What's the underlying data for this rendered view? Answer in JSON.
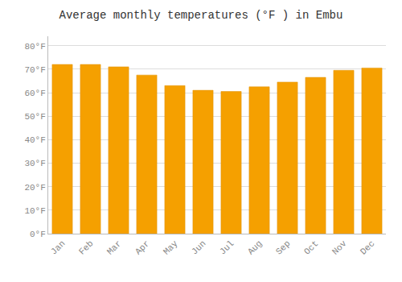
{
  "chart_data": {
    "type": "bar",
    "title": "Average monthly temperatures (°F ) in Embu",
    "categories": [
      "Jan",
      "Feb",
      "Mar",
      "Apr",
      "May",
      "Jun",
      "Jul",
      "Aug",
      "Sep",
      "Oct",
      "Nov",
      "Dec"
    ],
    "values": [
      72,
      72,
      71,
      67.5,
      63,
      61,
      60.5,
      62.5,
      64.5,
      66.5,
      69.5,
      70.5
    ],
    "color": "#F5A000",
    "ylim": [
      0,
      84
    ],
    "yticks": [
      {
        "value": 0,
        "label": "0°F"
      },
      {
        "value": 10,
        "label": "10°F"
      },
      {
        "value": 20,
        "label": "20°F"
      },
      {
        "value": 30,
        "label": "30°F"
      },
      {
        "value": 40,
        "label": "40°F"
      },
      {
        "value": 50,
        "label": "50°F"
      },
      {
        "value": 60,
        "label": "60°F"
      },
      {
        "value": 70,
        "label": "70°F"
      },
      {
        "value": 80,
        "label": "80°F"
      }
    ],
    "grid": true
  }
}
